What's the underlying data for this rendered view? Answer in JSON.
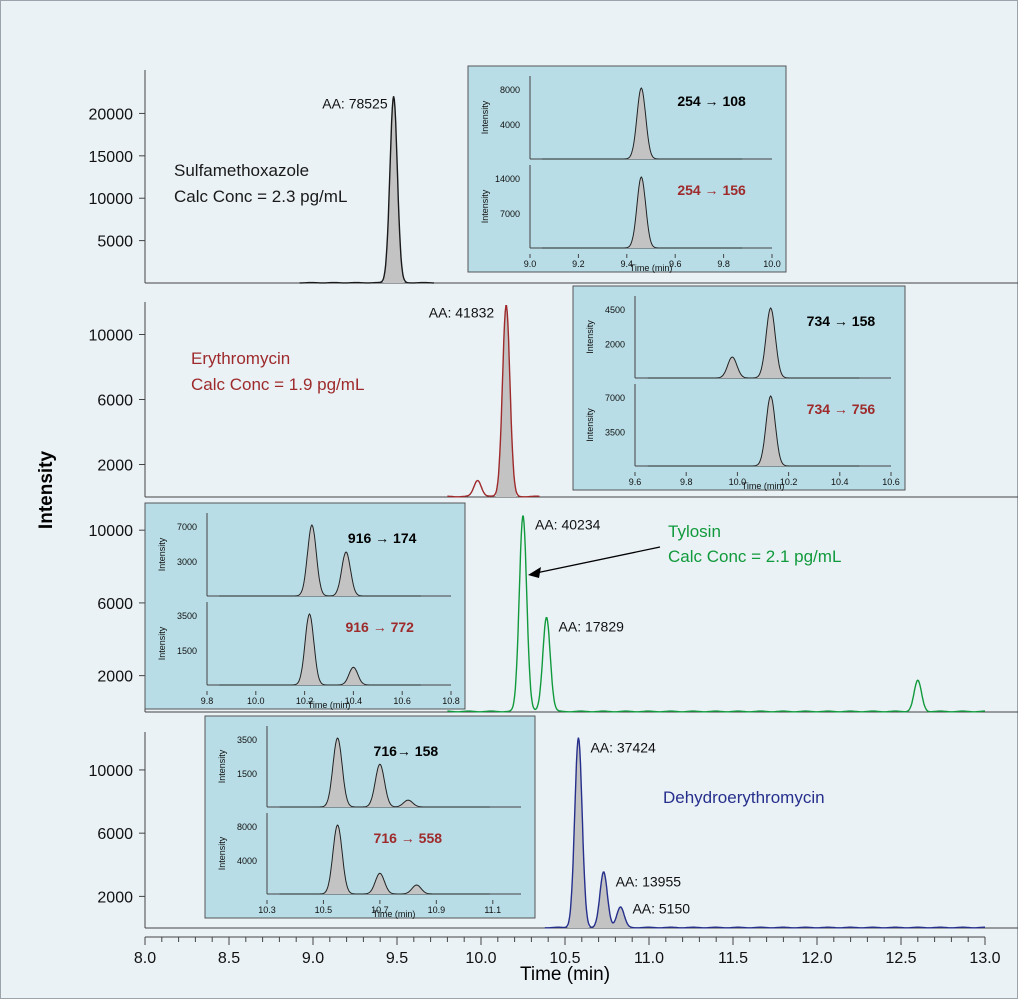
{
  "figure": {
    "y_axis_label": "Intensity",
    "x_axis_label": "Time (min)",
    "x_ticks": [
      "8.0",
      "8.5",
      "9.0",
      "9.5",
      "10.0",
      "10.5",
      "11.0",
      "11.5",
      "12.0",
      "12.5",
      "13.0"
    ],
    "colors": {
      "background": "#eaf2f6",
      "inset_fill": "#b8dde6",
      "peak_fill": "#c3c3c3",
      "sulfamethoxazole": "#1a1a1a",
      "erythromycin": "#9e2a2b",
      "tylosin": "#119a3c",
      "dehydroerythromycin": "#262f8c",
      "transition_primary": "#000000",
      "transition_secondary": "#9e2a2b"
    }
  },
  "chart_data": [
    {
      "type": "line",
      "title": "",
      "compound": "Sulfamethoxazole",
      "conc_label": "Calc Conc = 2.3 pg/mL",
      "color": "#1a1a1a",
      "y_ticks": [
        "20000",
        "15000",
        "10000",
        "5000"
      ],
      "ylim": [
        0,
        23000
      ],
      "xlim": [
        8.0,
        13.0
      ],
      "peaks": [
        {
          "rt": 9.48,
          "height": 22000,
          "area_label": "AA: 78525",
          "filled": true
        }
      ],
      "inset": {
        "x_ticks": [
          "9.0",
          "9.2",
          "9.4",
          "9.6",
          "9.8",
          "10.0"
        ],
        "x_label": "Time (min)",
        "y_label": "Intensity",
        "panels": [
          {
            "transition": "254 → 108",
            "y_ticks": [
              "8000",
              "4000"
            ],
            "peaks": [
              {
                "rt": 9.46,
                "height": 1.0
              }
            ]
          },
          {
            "transition": "254 → 156",
            "y_ticks": [
              "14000",
              "7000"
            ],
            "peaks": [
              {
                "rt": 9.46,
                "height": 1.0
              }
            ]
          }
        ]
      }
    },
    {
      "type": "line",
      "title": "",
      "compound": "Erythromycin",
      "conc_label": "Calc Conc = 1.9 pg/mL",
      "color": "#9e2a2b",
      "y_ticks": [
        "10000",
        "6000",
        "2000"
      ],
      "ylim": [
        0,
        12000
      ],
      "xlim": [
        8.0,
        13.0
      ],
      "peaks": [
        {
          "rt": 9.98,
          "height": 1000,
          "area_label": "",
          "filled": false
        },
        {
          "rt": 10.15,
          "height": 11800,
          "area_label": "AA: 41832",
          "filled": true
        }
      ],
      "inset": {
        "x_ticks": [
          "9.6",
          "9.8",
          "10.0",
          "10.2",
          "10.4",
          "10.6"
        ],
        "x_label": "Time (min)",
        "y_label": "Intensity",
        "panels": [
          {
            "transition": "734 → 158",
            "y_ticks": [
              "4500",
              "2000"
            ],
            "peaks": [
              {
                "rt": 10.13,
                "height": 1.0
              },
              {
                "rt": 9.98,
                "height": 0.3
              }
            ]
          },
          {
            "transition": "734 → 756",
            "y_ticks": [
              "7000",
              "3500"
            ],
            "peaks": [
              {
                "rt": 10.13,
                "height": 1.0
              }
            ]
          }
        ]
      }
    },
    {
      "type": "line",
      "title": "",
      "compound": "Tylosin",
      "conc_label": "Calc Conc = 2.1 pg/mL",
      "color": "#119a3c",
      "y_ticks": [
        "10000",
        "6000",
        "2000"
      ],
      "ylim": [
        0,
        11000
      ],
      "xlim": [
        8.0,
        13.0
      ],
      "peaks": [
        {
          "rt": 10.25,
          "height": 10800,
          "area_label": "AA: 40234",
          "filled": false
        },
        {
          "rt": 10.39,
          "height": 5200,
          "area_label": "AA: 17829",
          "filled": false
        },
        {
          "rt": 12.6,
          "height": 1700,
          "area_label": "",
          "filled": false
        }
      ],
      "inset": {
        "x_ticks": [
          "9.8",
          "10.0",
          "10.2",
          "10.4",
          "10.6",
          "10.8"
        ],
        "x_label": "Time (min)",
        "y_label": "Intensity",
        "panels": [
          {
            "transition": "916 → 174",
            "y_ticks": [
              "7000",
              "3000"
            ],
            "peaks": [
              {
                "rt": 10.23,
                "height": 1.0
              },
              {
                "rt": 10.37,
                "height": 0.62
              }
            ]
          },
          {
            "transition": "916 → 772",
            "y_ticks": [
              "3500",
              "1500"
            ],
            "peaks": [
              {
                "rt": 10.22,
                "height": 1.0
              },
              {
                "rt": 10.4,
                "height": 0.25
              }
            ]
          }
        ]
      }
    },
    {
      "type": "line",
      "title": "",
      "compound": "Dehydroerythromycin",
      "conc_label": "",
      "color": "#262f8c",
      "y_ticks": [
        "10000",
        "6000",
        "2000"
      ],
      "ylim": [
        0,
        12400
      ],
      "xlim": [
        8.0,
        13.0
      ],
      "peaks": [
        {
          "rt": 10.58,
          "height": 12000,
          "area_label": "AA: 37424",
          "filled": true
        },
        {
          "rt": 10.73,
          "height": 3500,
          "area_label": "AA: 13955",
          "filled": true
        },
        {
          "rt": 10.83,
          "height": 1300,
          "area_label": "AA: 5150",
          "filled": true
        }
      ],
      "inset": {
        "x_ticks": [
          "10.3",
          "10.5",
          "10.7",
          "10.9",
          "11.1"
        ],
        "x_label": "Time (min)",
        "y_label": "Intensity",
        "panels": [
          {
            "transition": "716→ 158",
            "y_ticks": [
              "3500",
              "1500"
            ],
            "peaks": [
              {
                "rt": 10.55,
                "height": 1.0
              },
              {
                "rt": 10.7,
                "height": 0.62
              },
              {
                "rt": 10.8,
                "height": 0.1
              }
            ]
          },
          {
            "transition": "716 → 558",
            "y_ticks": [
              "8000",
              "4000"
            ],
            "peaks": [
              {
                "rt": 10.55,
                "height": 1.0
              },
              {
                "rt": 10.7,
                "height": 0.3
              },
              {
                "rt": 10.83,
                "height": 0.13
              }
            ]
          }
        ]
      }
    }
  ]
}
